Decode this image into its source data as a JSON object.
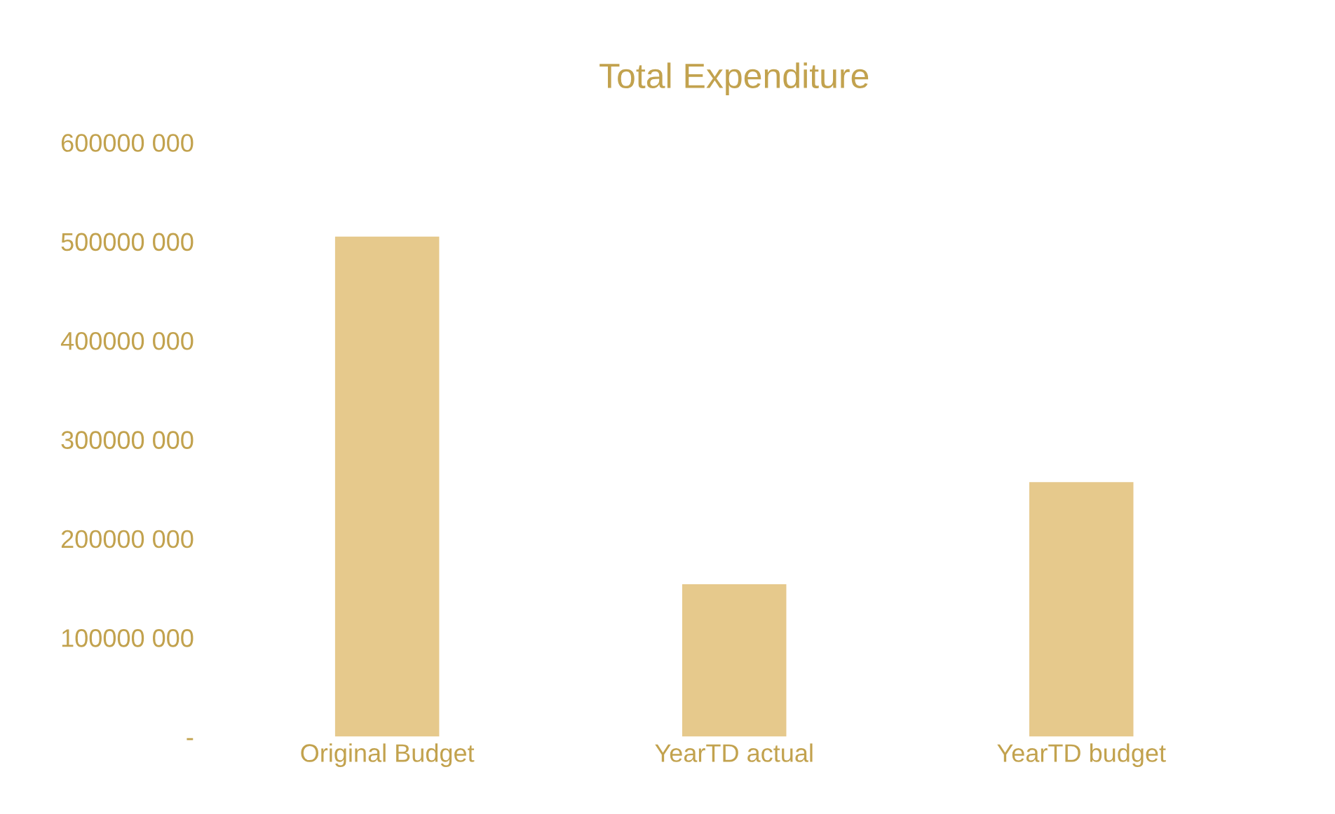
{
  "chart_data": {
    "type": "bar",
    "title": "Total Expenditure",
    "categories": [
      "Original Budget",
      "YearTD actual",
      "YearTD budget"
    ],
    "values": [
      505000000,
      154000000,
      257000000
    ],
    "color": "#e6c98c",
    "ylim": [
      0,
      600000000
    ],
    "yticks": [
      {
        "value": 0,
        "label": "-"
      },
      {
        "value": 100000000,
        "label": "100000 000"
      },
      {
        "value": 200000000,
        "label": "200000 000"
      },
      {
        "value": 300000000,
        "label": "300000 000"
      },
      {
        "value": 400000000,
        "label": "400000 000"
      },
      {
        "value": 500000000,
        "label": "500000 000"
      },
      {
        "value": 600000000,
        "label": "600000 000"
      }
    ],
    "grid": false
  }
}
